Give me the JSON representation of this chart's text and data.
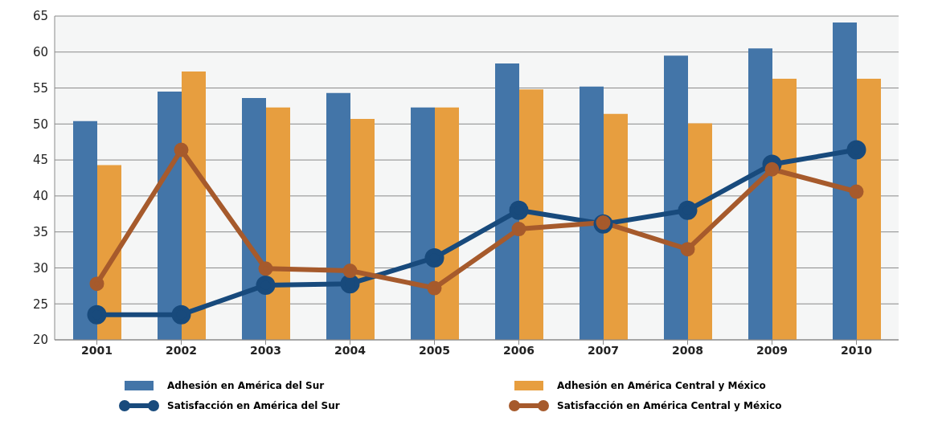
{
  "chart_data": {
    "type": "bar",
    "categories": [
      "2001",
      "2002",
      "2003",
      "2004",
      "2005",
      "2006",
      "2007",
      "2008",
      "2009",
      "2010"
    ],
    "series": [
      {
        "name": "Adhesión en América del Sur",
        "color": "#4375a8",
        "values": [
          50.4,
          54.5,
          53.6,
          54.3,
          52.3,
          58.4,
          55.2,
          59.5,
          60.5,
          64.1
        ]
      },
      {
        "name": "Adhesión en América Central y México",
        "color": "#e79e3f",
        "values": [
          44.3,
          57.3,
          52.3,
          50.7,
          52.3,
          54.8,
          51.4,
          50.1,
          56.3,
          56.3
        ]
      },
      {
        "name": "Satisfacción en América del Sur",
        "type": "line",
        "color": "#184a7c",
        "values": [
          23.5,
          23.5,
          27.6,
          27.8,
          31.4,
          38.0,
          36.1,
          38.0,
          44.4,
          46.4
        ]
      },
      {
        "name": "Satisfacción en América Central y México",
        "type": "line",
        "color": "#a65a2c",
        "values": [
          27.8,
          46.4,
          29.9,
          29.6,
          27.2,
          35.4,
          36.3,
          32.6,
          43.7,
          40.6
        ]
      }
    ],
    "ylim": [
      20,
      65
    ],
    "yticks": [
      20,
      25,
      30,
      35,
      40,
      45,
      50,
      55,
      60,
      65
    ],
    "grid": "y",
    "legend": "bottom",
    "marker": "circle",
    "line_style": "solid"
  }
}
